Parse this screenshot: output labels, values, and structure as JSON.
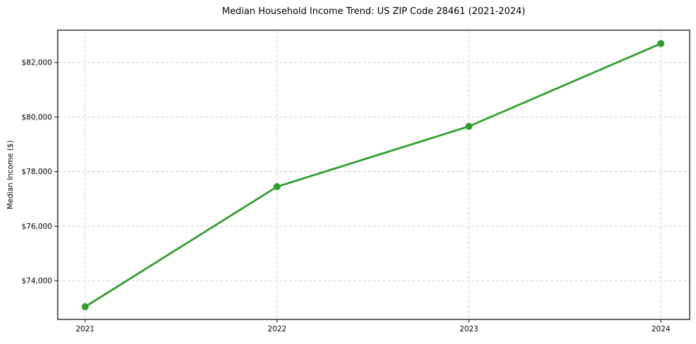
{
  "chart_data": {
    "type": "line",
    "title": "Median Household Income Trend: US ZIP Code 28461 (2021-2024)",
    "xlabel": "",
    "ylabel": "Median Income ($)",
    "x": [
      2021,
      2022,
      2023,
      2024
    ],
    "values": [
      73050,
      77450,
      79660,
      82695
    ],
    "x_tick_labels": [
      "2021",
      "2022",
      "2023",
      "2024"
    ],
    "y_ticks": [
      74000,
      76000,
      78000,
      80000,
      82000
    ],
    "y_tick_labels": [
      "$74,000",
      "$76,000",
      "$78,000",
      "$80,000",
      "$82,000"
    ],
    "xlim": [
      2020.857,
      2024.15
    ],
    "ylim": [
      72585,
      83185
    ],
    "line_color": "#2ca02c",
    "marker": "circle",
    "grid": "dashed",
    "grid_color": "#cccccc",
    "spine_color": "#000000",
    "background": "#ffffff",
    "legend": "none"
  }
}
